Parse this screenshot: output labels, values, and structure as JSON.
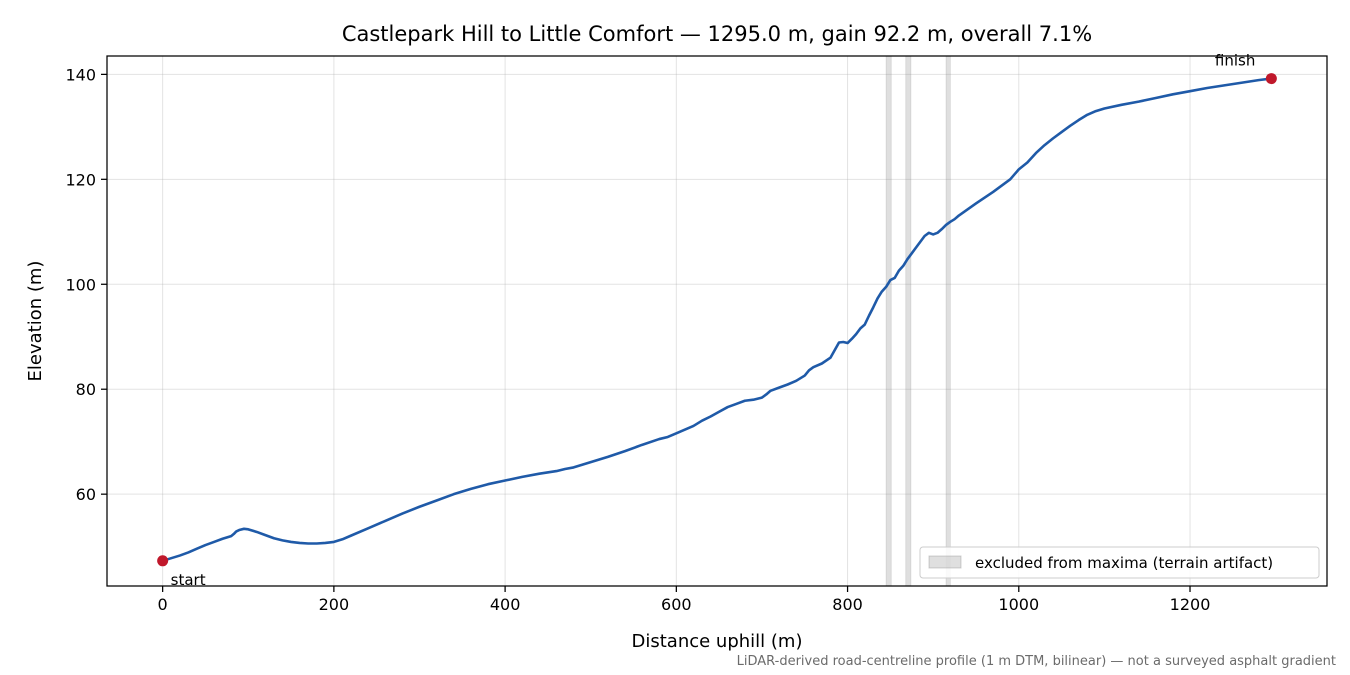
{
  "chart_data": {
    "type": "line",
    "title": "Castlepark Hill to Little Comfort — 1295.0 m, gain 92.2 m, overall 7.1%",
    "xlabel": "Distance uphill (m)",
    "ylabel": "Elevation (m)",
    "xlim": [
      -65,
      1360
    ],
    "ylim": [
      42.5,
      143.5
    ],
    "xticks": [
      0,
      200,
      400,
      600,
      800,
      1000,
      1200
    ],
    "yticks": [
      60,
      80,
      100,
      120,
      140
    ],
    "grid": true,
    "legend": {
      "placement": "lower-right",
      "entries": [
        "excluded from maxima (terrain artifact)"
      ]
    },
    "footnote": "LiDAR-derived road-centreline profile (1 m DTM, bilinear) — not a surveyed asphalt gradient",
    "series": [
      {
        "color": "#1f5aa8",
        "x": [
          0,
          10,
          20,
          30,
          40,
          50,
          60,
          70,
          80,
          83,
          86,
          90,
          95,
          100,
          110,
          120,
          130,
          140,
          150,
          160,
          170,
          180,
          190,
          200,
          210,
          220,
          240,
          260,
          280,
          300,
          320,
          340,
          360,
          380,
          400,
          420,
          440,
          460,
          470,
          480,
          500,
          520,
          540,
          560,
          580,
          590,
          600,
          620,
          630,
          640,
          650,
          660,
          670,
          680,
          690,
          700,
          705,
          710,
          720,
          730,
          740,
          750,
          755,
          760,
          770,
          780,
          790,
          795,
          800,
          805,
          810,
          815,
          820,
          825,
          830,
          835,
          840,
          845,
          850,
          855,
          860,
          865,
          870,
          875,
          880,
          885,
          890,
          895,
          900,
          905,
          910,
          915,
          920,
          925,
          930,
          950,
          970,
          990,
          1000,
          1010,
          1020,
          1030,
          1040,
          1050,
          1060,
          1070,
          1080,
          1090,
          1100,
          1120,
          1140,
          1160,
          1180,
          1200,
          1220,
          1240,
          1260,
          1280,
          1295
        ],
        "y": [
          47.3,
          47.8,
          48.3,
          48.9,
          49.6,
          50.3,
          50.9,
          51.5,
          52.0,
          52.4,
          52.9,
          53.2,
          53.4,
          53.3,
          52.8,
          52.2,
          51.6,
          51.2,
          50.9,
          50.7,
          50.6,
          50.6,
          50.7,
          50.9,
          51.4,
          52.1,
          53.5,
          54.9,
          56.3,
          57.6,
          58.8,
          60.0,
          61.0,
          61.9,
          62.6,
          63.3,
          63.9,
          64.4,
          64.8,
          65.1,
          66.1,
          67.1,
          68.2,
          69.4,
          70.5,
          70.9,
          71.6,
          73.0,
          74.0,
          74.8,
          75.7,
          76.6,
          77.2,
          77.8,
          78.0,
          78.4,
          79.0,
          79.7,
          80.3,
          80.9,
          81.6,
          82.6,
          83.6,
          84.2,
          84.9,
          86.0,
          88.9,
          89.0,
          88.8,
          89.6,
          90.5,
          91.6,
          92.3,
          94.0,
          95.6,
          97.3,
          98.6,
          99.5,
          100.8,
          101.2,
          102.6,
          103.5,
          104.8,
          105.9,
          107.0,
          108.1,
          109.2,
          109.8,
          109.5,
          109.8,
          110.5,
          111.3,
          111.9,
          112.4,
          113.1,
          115.4,
          117.6,
          120.0,
          121.9,
          123.2,
          125.0,
          126.5,
          127.8,
          129.0,
          130.2,
          131.3,
          132.3,
          133.0,
          133.5,
          134.2,
          134.8,
          135.5,
          136.2,
          136.8,
          137.4,
          137.9,
          138.4,
          138.9,
          139.2
        ]
      }
    ],
    "excluded_spans": [
      [
        845,
        851
      ],
      [
        868,
        874
      ],
      [
        915,
        920
      ]
    ],
    "markers": [
      {
        "label": "start",
        "x": 0,
        "y": 47.3,
        "color": "#c0182b"
      },
      {
        "label": "finish",
        "x": 1295,
        "y": 139.2,
        "color": "#c0182b"
      }
    ]
  }
}
